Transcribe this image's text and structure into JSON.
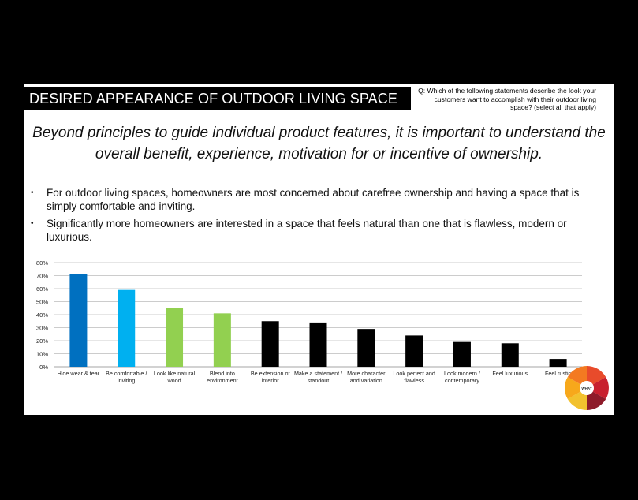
{
  "header": {
    "title": "DESIRED APPEARANCE OF OUTDOOR LIVING SPACE",
    "question": "Q:  Which of the following statements describe the look your customers want to accomplish with their outdoor living space? (select all that apply)"
  },
  "subtitle": "Beyond principles to guide individual product features, it is important to understand the overall benefit, experience, motivation for or incentive of ownership.",
  "bullets": [
    "For outdoor living spaces, homeowners are most concerned about carefree ownership and having a space that is simply comfortable and inviting.",
    "Significantly more homeowners are interested in a space that feels natural than one that is flawless, modern or luxurious."
  ],
  "bullet_symbol": "•",
  "chart_data": {
    "type": "bar",
    "categories": [
      [
        "Hide wear & tear"
      ],
      [
        "Be comfortable /",
        "inviting"
      ],
      [
        "Look like natural",
        "wood"
      ],
      [
        "Blend into",
        "environment"
      ],
      [
        "Be extension of",
        "interior"
      ],
      [
        "Make a statement /",
        "standout"
      ],
      [
        "More character",
        "and variation"
      ],
      [
        "Look perfect and",
        "flawless"
      ],
      [
        "Look modern /",
        "contemporary"
      ],
      [
        "Feel luxurious"
      ],
      [
        "Feel rustic"
      ]
    ],
    "values": [
      71,
      59,
      45,
      41,
      35,
      34,
      29,
      24,
      19,
      18,
      6
    ],
    "colors": [
      "#0070C0",
      "#00B0F0",
      "#92D050",
      "#92D050",
      "#000000",
      "#000000",
      "#000000",
      "#000000",
      "#000000",
      "#000000",
      "#000000"
    ],
    "ylim": [
      0,
      80
    ],
    "yticks": [
      "0%",
      "10%",
      "20%",
      "30%",
      "40%",
      "50%",
      "60%",
      "70%",
      "80%"
    ],
    "grid": true,
    "title": "",
    "xlabel": "",
    "ylabel": ""
  },
  "logo": {
    "text": "WHAT"
  }
}
